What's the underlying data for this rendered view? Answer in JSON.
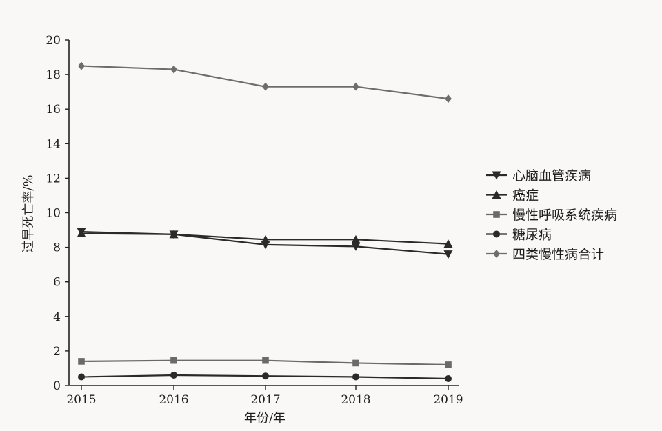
{
  "chart_data": {
    "type": "line",
    "title": "",
    "xlabel": "年份/年",
    "ylabel": "过早死亡率/%",
    "x": [
      "2015",
      "2016",
      "2017",
      "2018",
      "2019"
    ],
    "ylim": [
      0,
      20
    ],
    "yticks": [
      "0",
      "2",
      "4",
      "6",
      "8",
      "10",
      "12",
      "14",
      "16",
      "18",
      "20"
    ],
    "grid": false,
    "legend_position": "right",
    "series": [
      {
        "name": "心脑血管疾病",
        "marker": "triangle-down",
        "color": "#2a2a2a",
        "values": [
          8.9,
          8.75,
          8.15,
          8.05,
          7.6
        ]
      },
      {
        "name": "癌症",
        "marker": "triangle-up",
        "color": "#2a2a2a",
        "values": [
          8.8,
          8.75,
          8.45,
          8.45,
          8.2
        ]
      },
      {
        "name": "慢性呼吸系统疾病",
        "marker": "square",
        "color": "#6a6a6a",
        "values": [
          1.4,
          1.45,
          1.45,
          1.3,
          1.2
        ]
      },
      {
        "name": "糖尿病",
        "marker": "circle",
        "color": "#2a2a2a",
        "values": [
          0.5,
          0.6,
          0.55,
          0.5,
          0.4
        ]
      },
      {
        "name": "四类慢性病合计",
        "marker": "diamond",
        "color": "#6d6d6d",
        "values": [
          18.5,
          18.3,
          17.3,
          17.3,
          16.6
        ]
      }
    ]
  }
}
